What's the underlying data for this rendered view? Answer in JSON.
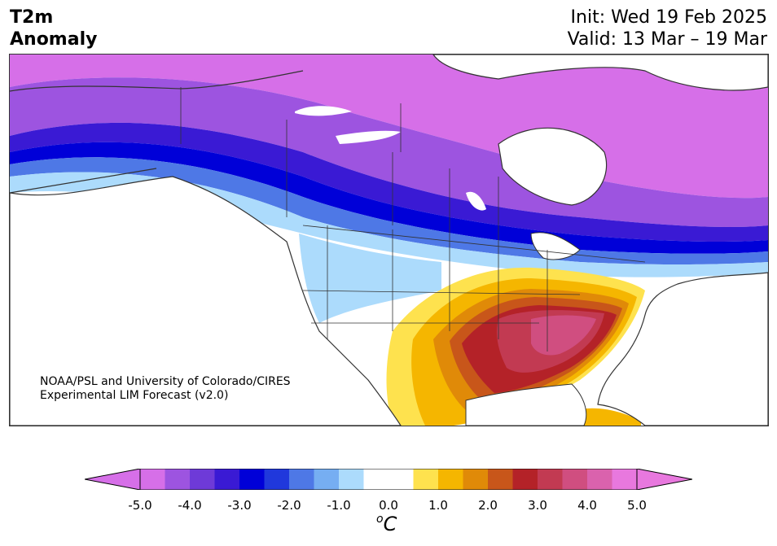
{
  "header": {
    "title_line1": "T2m",
    "title_line2": "Anomaly",
    "init": "Init: Wed 19 Feb 2025",
    "valid": "Valid: 13 Mar – 19 Mar"
  },
  "credit": {
    "line1": "NOAA/PSL and University of Colorado/CIRES",
    "line2": "Experimental LIM Forecast (v2.0)"
  },
  "colorbar": {
    "unit_base": "C",
    "unit_sup": "o",
    "tick_labels": [
      "-5.0",
      "-4.0",
      "-3.0",
      "-2.0",
      "-1.0",
      "0.0",
      "1.0",
      "2.0",
      "3.0",
      "4.0",
      "5.0"
    ],
    "colors": [
      "#d66fe8",
      "#9d54e0",
      "#6e3ad8",
      "#3a1ad4",
      "#0000d8",
      "#2038dc",
      "#4e78e6",
      "#76aef2",
      "#acdbfc",
      "#ffffff",
      "#ffffff",
      "#fee24e",
      "#f5b600",
      "#e08a08",
      "#c8561a",
      "#b42228",
      "#c23a52",
      "#d04e80",
      "#da62ad",
      "#e878de"
    ],
    "underflow_color": "#d66fe8",
    "overflow_color": "#e878de"
  }
}
